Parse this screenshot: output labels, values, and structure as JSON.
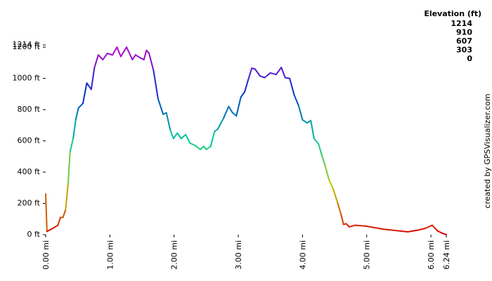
{
  "chart_data": {
    "type": "line",
    "legend_title": "Elevation (ft)",
    "credit": "created by GPSVisualizer.com",
    "color_scale": [
      {
        "value": 1214,
        "color": "#cc00cc"
      },
      {
        "value": 910,
        "color": "#0033cc"
      },
      {
        "value": 607,
        "color": "#00cc99"
      },
      {
        "value": 303,
        "color": "#bbcc00"
      },
      {
        "value": 0,
        "color": "#dd0000"
      }
    ],
    "x": [
      0,
      0.02,
      0.11,
      0.19,
      0.23,
      0.27,
      0.31,
      0.35,
      0.38,
      0.43,
      0.47,
      0.51,
      0.58,
      0.64,
      0.71,
      0.76,
      0.82,
      0.89,
      0.96,
      1.04,
      1.11,
      1.17,
      1.26,
      1.35,
      1.4,
      1.48,
      1.53,
      1.57,
      1.61,
      1.68,
      1.75,
      1.83,
      1.88,
      1.94,
      1.99,
      2.05,
      2.11,
      2.18,
      2.25,
      2.33,
      2.41,
      2.46,
      2.5,
      2.57,
      2.63,
      2.68,
      2.77,
      2.85,
      2.91,
      2.97,
      3.04,
      3.1,
      3.15,
      3.21,
      3.26,
      3.34,
      3.41,
      3.5,
      3.59,
      3.67,
      3.73,
      3.8,
      3.87,
      3.94,
      4.0,
      4.07,
      4.13,
      4.18,
      4.25,
      4.3,
      4.35,
      4.41,
      4.48,
      4.55,
      4.6,
      4.64,
      4.68,
      4.73,
      4.82,
      4.98,
      5.26,
      5.48,
      5.64,
      5.81,
      5.91,
      6.02,
      6.1,
      6.17,
      6.24
    ],
    "values": [
      260,
      20,
      40,
      60,
      110,
      110,
      160,
      330,
      530,
      620,
      740,
      810,
      840,
      970,
      930,
      1070,
      1150,
      1120,
      1160,
      1150,
      1200,
      1140,
      1200,
      1120,
      1150,
      1130,
      1120,
      1180,
      1160,
      1050,
      870,
      770,
      780,
      670,
      615,
      650,
      615,
      640,
      585,
      570,
      545,
      565,
      545,
      565,
      660,
      675,
      745,
      820,
      780,
      760,
      880,
      915,
      985,
      1065,
      1060,
      1015,
      1005,
      1035,
      1025,
      1070,
      1005,
      1000,
      895,
      825,
      735,
      715,
      730,
      615,
      580,
      510,
      445,
      355,
      290,
      200,
      130,
      65,
      70,
      50,
      60,
      55,
      35,
      25,
      18,
      30,
      40,
      60,
      25,
      10,
      0
    ],
    "xlim": [
      0,
      6.24
    ],
    "ylim": [
      0,
      1214
    ],
    "xticks": [
      {
        "value": 0,
        "label": "0.00 mi"
      },
      {
        "value": 1,
        "label": "1.00 mi"
      },
      {
        "value": 2,
        "label": "2.00 mi"
      },
      {
        "value": 3,
        "label": "3.00 mi"
      },
      {
        "value": 4,
        "label": "4.00 mi"
      },
      {
        "value": 5,
        "label": "5.00 mi"
      },
      {
        "value": 6,
        "label": "6.00 mi"
      },
      {
        "value": 6.24,
        "label": "6.24 mi"
      }
    ],
    "yticks": [
      {
        "value": 0,
        "label": "0 ft"
      },
      {
        "value": 200,
        "label": "200 ft"
      },
      {
        "value": 400,
        "label": "400 ft"
      },
      {
        "value": 600,
        "label": "600 ft"
      },
      {
        "value": 800,
        "label": "800 ft"
      },
      {
        "value": 1000,
        "label": "1000 ft"
      },
      {
        "value": 1200,
        "label": "1200 ft"
      },
      {
        "value": 1214,
        "label": "1214 ft"
      }
    ],
    "grid": false
  }
}
